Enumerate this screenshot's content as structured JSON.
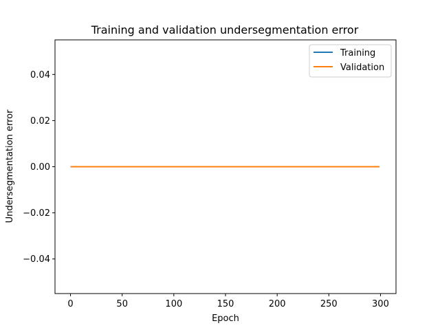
{
  "chart_data": {
    "type": "line",
    "title": "Training and validation undersegmentation error",
    "xlabel": "Epoch",
    "ylabel": "Undersegmentation error",
    "xlim": [
      -15,
      315
    ],
    "ylim": [
      -0.055,
      0.055
    ],
    "xticks": [
      0,
      50,
      100,
      150,
      200,
      250,
      300
    ],
    "yticks": [
      -0.04,
      -0.02,
      0.0,
      0.02,
      0.04
    ],
    "ytick_labels": [
      "−0.04",
      "−0.02",
      "0.00",
      "0.02",
      "0.04"
    ],
    "grid": false,
    "legend": "top-right",
    "series": [
      {
        "name": "Training",
        "color": "#1f77b4",
        "x": [
          0,
          299
        ],
        "values": [
          0.0,
          0.0
        ]
      },
      {
        "name": "Validation",
        "color": "#ff7f0e",
        "x": [
          0,
          299
        ],
        "values": [
          0.0,
          0.0
        ]
      }
    ]
  }
}
